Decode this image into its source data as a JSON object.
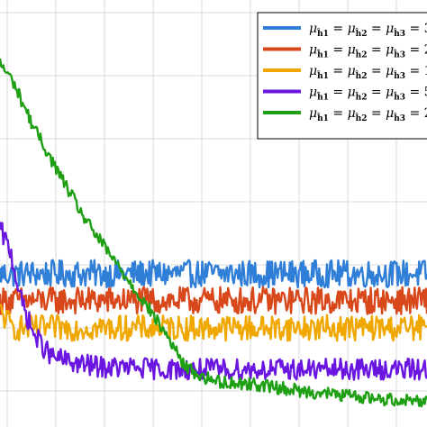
{
  "chart_data": {
    "type": "line",
    "title": "",
    "xlabel": "",
    "ylabel": "",
    "x_range": [
      0,
      1
    ],
    "ylim": [
      0,
      1
    ],
    "grid": true,
    "legend_placement": "top-right",
    "series": [
      {
        "name": "μ_ĥ1 = μ_ĥ2 = μ_ĥ3 = 3",
        "legend_tokens": [
          "μ",
          "ĥ1",
          "=",
          "μ",
          "ĥ2",
          "=",
          "μ",
          "ĥ3",
          "= 3"
        ],
        "color": "#2f7ed8",
        "x": [
          0.0,
          1.0
        ],
        "y": [
          0.359,
          0.359
        ],
        "noise": 0.032
      },
      {
        "name": "μ_ĥ1 = μ_ĥ2 = μ_ĥ3 = 2",
        "legend_tokens": [
          "μ",
          "ĥ1",
          "=",
          "μ",
          "ĥ2",
          "=",
          "μ",
          "ĥ3",
          "= 2"
        ],
        "color": "#d9481b",
        "x": [
          0.0,
          1.0
        ],
        "y": [
          0.296,
          0.296
        ],
        "noise": 0.032
      },
      {
        "name": "μ_ĥ1 = μ_ĥ2 = μ_ĥ3 = 1",
        "legend_tokens": [
          "μ",
          "ĥ1",
          "=",
          "μ",
          "ĥ2",
          "=",
          "μ",
          "ĥ3",
          "= 1"
        ],
        "color": "#f0a800",
        "x": [
          0.0,
          0.03,
          0.06,
          1.0
        ],
        "y": [
          0.27,
          0.232,
          0.232,
          0.232
        ],
        "noise": 0.03
      },
      {
        "name": "μ_ĥ1 = μ_ĥ2 = μ_ĥ3 = 5",
        "legend_tokens": [
          "μ",
          "ĥ1",
          "=",
          "μ",
          "ĥ2",
          "=",
          "μ",
          "ĥ3",
          "= 5"
        ],
        "color": "#6a16e0",
        "x": [
          0.0,
          0.025,
          0.05,
          0.08,
          0.12,
          0.18,
          0.24,
          0.32,
          0.4,
          1.0
        ],
        "y": [
          0.464,
          0.41,
          0.295,
          0.215,
          0.165,
          0.148,
          0.14,
          0.138,
          0.135,
          0.135
        ],
        "noise": 0.025
      },
      {
        "name": "μ_ĥ1 = μ_ĥ2 = μ_ĥ3 = 2",
        "legend_tokens": [
          "μ",
          "ĥ1",
          "=",
          "μ",
          "ĥ2",
          "=",
          "μ",
          "ĥ3",
          "= 2"
        ],
        "color": "#1e9f14",
        "x": [
          0.0,
          0.03,
          0.08,
          0.14,
          0.2,
          0.26,
          0.3,
          0.35,
          0.4,
          0.43,
          0.47,
          0.52,
          0.6,
          0.7,
          0.8,
          0.9,
          1.0
        ],
        "y": [
          0.852,
          0.81,
          0.7,
          0.59,
          0.485,
          0.4,
          0.345,
          0.275,
          0.2,
          0.145,
          0.118,
          0.105,
          0.1,
          0.085,
          0.075,
          0.065,
          0.062
        ],
        "noise": 0.015
      }
    ]
  }
}
